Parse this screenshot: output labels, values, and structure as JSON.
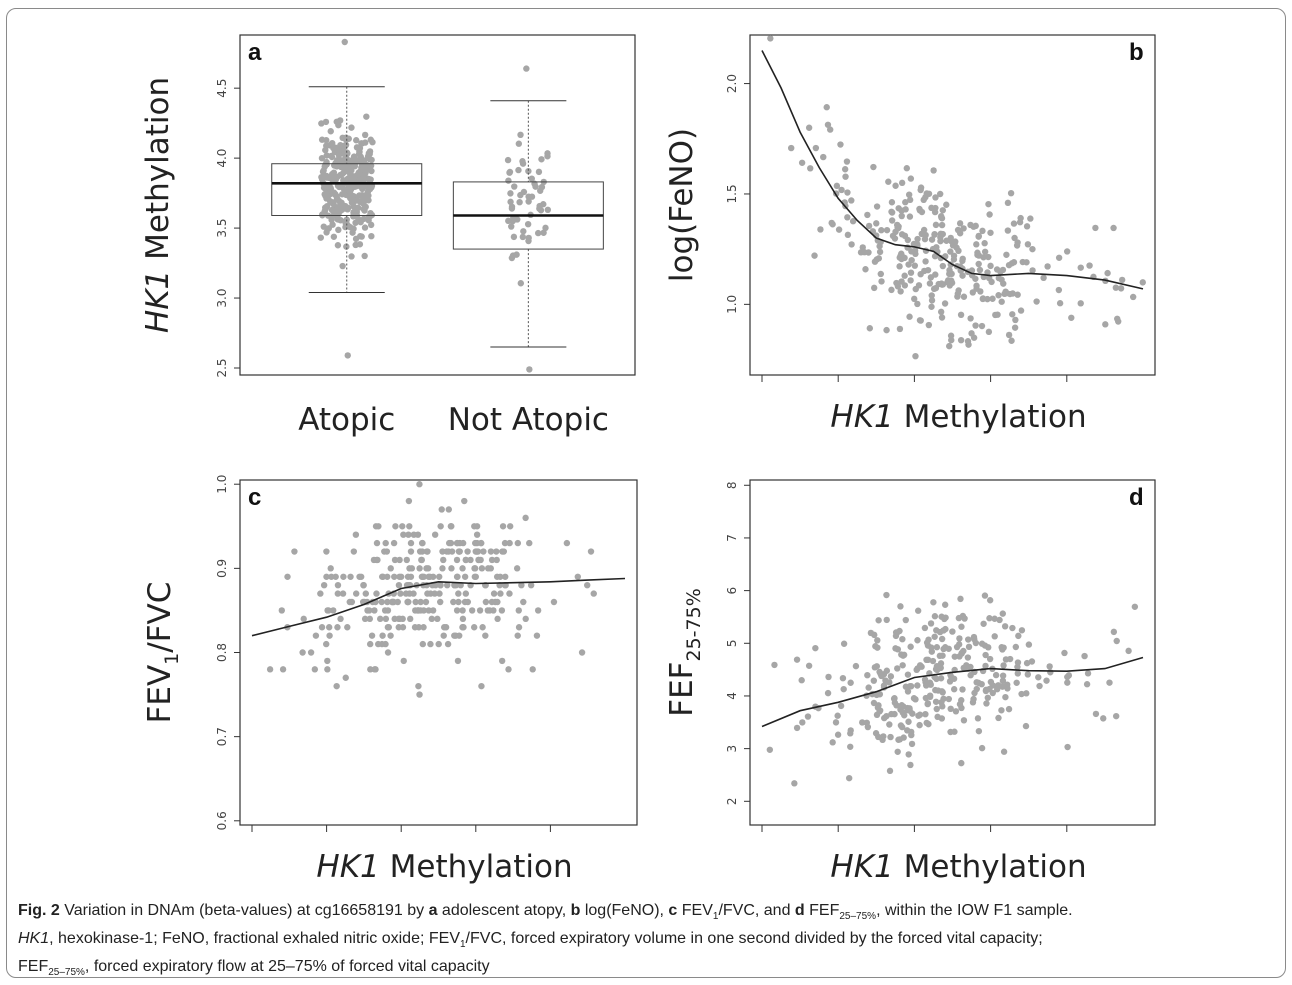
{
  "chart_data": [
    {
      "type": "box",
      "panel": "a",
      "ylabel_italic": "HK1",
      "ylabel_rest": " Methylation",
      "categories": [
        "Atopic",
        "Not Atopic"
      ],
      "ylim": [
        2.45,
        4.88
      ],
      "yticks": [
        "2.5",
        "3.0",
        "3.5",
        "4.0",
        "4.5"
      ],
      "boxes": [
        {
          "category": "Atopic",
          "lower_whisker": 3.04,
          "q1": 3.59,
          "median": 3.82,
          "q3": 3.96,
          "upper_whisker": 4.51,
          "min_point": 2.59,
          "max_point": 4.83,
          "n_points": 330
        },
        {
          "category": "Not Atopic",
          "lower_whisker": 2.65,
          "q1": 3.35,
          "median": 3.59,
          "q3": 3.83,
          "upper_whisker": 4.41,
          "min_point": 2.49,
          "max_point": 4.64,
          "n_points": 55
        }
      ]
    },
    {
      "type": "scatter",
      "panel": "b",
      "xlabel_italic": "HK1",
      "xlabel_rest": " Methylation",
      "ylabel": "log(FeNO)",
      "ylim": [
        0.68,
        2.22
      ],
      "yticks": [
        "1.0",
        "1.5",
        "2.0"
      ],
      "xticks_labeled": false,
      "n_points": 330,
      "smooth": [
        [
          0.0,
          2.15
        ],
        [
          0.05,
          1.98
        ],
        [
          0.1,
          1.78
        ],
        [
          0.15,
          1.62
        ],
        [
          0.2,
          1.48
        ],
        [
          0.25,
          1.38
        ],
        [
          0.3,
          1.3
        ],
        [
          0.35,
          1.27
        ],
        [
          0.4,
          1.26
        ],
        [
          0.45,
          1.24
        ],
        [
          0.5,
          1.18
        ],
        [
          0.55,
          1.14
        ],
        [
          0.6,
          1.13
        ],
        [
          0.7,
          1.14
        ],
        [
          0.8,
          1.13
        ],
        [
          0.9,
          1.11
        ],
        [
          1.0,
          1.07
        ]
      ]
    },
    {
      "type": "scatter",
      "panel": "c",
      "xlabel_italic": "HK1",
      "xlabel_rest": " Methylation",
      "ylabel_main": "FEV",
      "ylabel_sub": "1",
      "ylabel_tail": "/FVC",
      "ylim": [
        0.595,
        1.005
      ],
      "yticks": [
        "0.6",
        "0.7",
        "0.8",
        "0.9",
        "1.0"
      ],
      "xticks_labeled": false,
      "n_points": 330,
      "smooth": [
        [
          0.0,
          0.82
        ],
        [
          0.1,
          0.831
        ],
        [
          0.2,
          0.842
        ],
        [
          0.3,
          0.857
        ],
        [
          0.4,
          0.876
        ],
        [
          0.5,
          0.884
        ],
        [
          0.6,
          0.882
        ],
        [
          0.7,
          0.883
        ],
        [
          0.8,
          0.884
        ],
        [
          0.9,
          0.886
        ],
        [
          1.0,
          0.888
        ]
      ]
    },
    {
      "type": "scatter",
      "panel": "d",
      "xlabel_italic": "HK1",
      "xlabel_rest": " Methylation",
      "ylabel_main": "FEF",
      "ylabel_sub": "25-75%",
      "ylim": [
        1.55,
        8.1
      ],
      "yticks": [
        "2",
        "3",
        "4",
        "5",
        "6",
        "7",
        "8"
      ],
      "xticks_labeled": false,
      "n_points": 330,
      "smooth": [
        [
          0.0,
          3.42
        ],
        [
          0.1,
          3.72
        ],
        [
          0.2,
          3.88
        ],
        [
          0.3,
          4.08
        ],
        [
          0.4,
          4.35
        ],
        [
          0.5,
          4.45
        ],
        [
          0.6,
          4.52
        ],
        [
          0.7,
          4.48
        ],
        [
          0.8,
          4.47
        ],
        [
          0.9,
          4.52
        ],
        [
          1.0,
          4.73
        ]
      ]
    }
  ],
  "caption": {
    "fig_label": "Fig. 2",
    "t1": "  Variation in DNAm (beta-values) at cg16658191 by ",
    "a": "a",
    "t2": " adolescent atopy, ",
    "b": "b",
    "t3": " log(FeNO), ",
    "c": "c",
    "t4": " FEV",
    "t4_sub": "1",
    "t5": "/FVC, and ",
    "d": "d",
    "t6": " FEF",
    "t6_sub": "25–75%",
    "t7": ", within the IOW F1 sample.",
    "hk1": "HK1",
    "t8": ", hexokinase-1; FeNO, fractional exhaled nitric oxide; FEV",
    "t8_sub": "1",
    "t9": "/FVC, forced expiratory volume in one second divided by the forced vital capacity;",
    "t10": "FEF",
    "t10_sub": "25–75%",
    "t11": ", forced expiratory flow at 25–75% of forced vital capacity"
  }
}
